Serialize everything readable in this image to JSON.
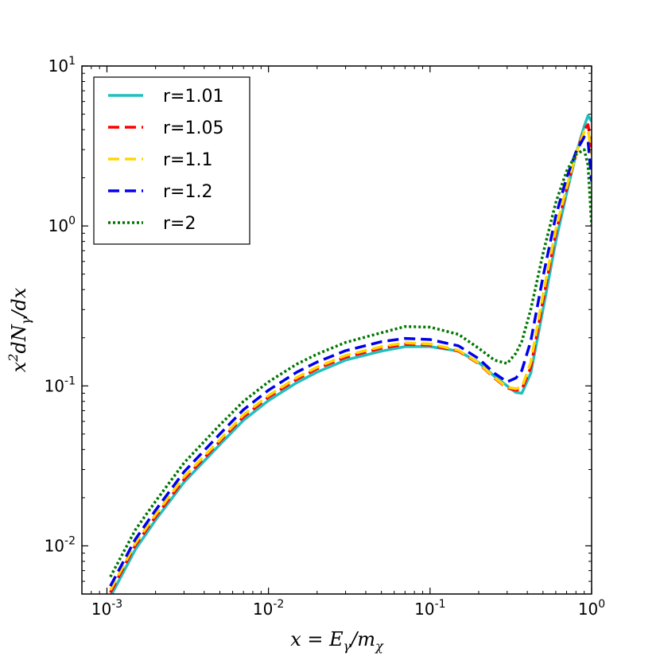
{
  "chart_data": {
    "type": "line",
    "title": "",
    "xlabel": "x = Eγ/mχ",
    "ylabel": "x²dNγ/dx",
    "xscale": "log",
    "yscale": "log",
    "xlim": [
      0.0007,
      1.0
    ],
    "ylim": [
      0.005,
      10
    ],
    "xticks": [
      {
        "value": 0.001,
        "base": "10",
        "exp": "-3"
      },
      {
        "value": 0.01,
        "base": "10",
        "exp": "-2"
      },
      {
        "value": 0.1,
        "base": "10",
        "exp": "-1"
      },
      {
        "value": 1,
        "base": "10",
        "exp": "0"
      }
    ],
    "yticks": [
      {
        "value": 0.01,
        "base": "10",
        "exp": "-2"
      },
      {
        "value": 0.1,
        "base": "10",
        "exp": "-1"
      },
      {
        "value": 1,
        "base": "10",
        "exp": "0"
      },
      {
        "value": 10,
        "base": "10",
        "exp": "1"
      }
    ],
    "legend_position": "top-left",
    "series": [
      {
        "name": "r=1.01",
        "color": "#22bfbf",
        "style": "solid",
        "x": [
          0.00105,
          0.0015,
          0.002,
          0.003,
          0.005,
          0.007,
          0.01,
          0.015,
          0.02,
          0.03,
          0.05,
          0.07,
          0.1,
          0.15,
          0.2,
          0.25,
          0.3,
          0.34,
          0.37,
          0.42,
          0.5,
          0.6,
          0.7,
          0.8,
          0.9,
          0.95,
          1.0
        ],
        "y": [
          0.0048,
          0.0095,
          0.0145,
          0.025,
          0.043,
          0.061,
          0.081,
          0.105,
          0.122,
          0.145,
          0.165,
          0.176,
          0.176,
          0.165,
          0.14,
          0.115,
          0.1,
          0.091,
          0.09,
          0.12,
          0.3,
          0.8,
          1.6,
          2.8,
          4.2,
          4.9,
          4.5
        ]
      },
      {
        "name": "r=1.05",
        "color": "#ff0000",
        "style": "dashed",
        "x": [
          0.00105,
          0.0015,
          0.002,
          0.003,
          0.005,
          0.007,
          0.01,
          0.015,
          0.02,
          0.03,
          0.05,
          0.07,
          0.1,
          0.15,
          0.2,
          0.25,
          0.3,
          0.34,
          0.37,
          0.42,
          0.5,
          0.6,
          0.7,
          0.8,
          0.9,
          0.95,
          1.0
        ],
        "y": [
          0.0051,
          0.0101,
          0.0152,
          0.026,
          0.045,
          0.064,
          0.085,
          0.11,
          0.128,
          0.151,
          0.172,
          0.182,
          0.18,
          0.165,
          0.138,
          0.112,
          0.097,
          0.094,
          0.095,
          0.13,
          0.34,
          0.9,
          1.7,
          2.8,
          4.0,
          4.3,
          3.1
        ]
      },
      {
        "name": "r=1.1",
        "color": "#ffd700",
        "style": "dashed",
        "x": [
          0.00105,
          0.0015,
          0.002,
          0.003,
          0.005,
          0.007,
          0.01,
          0.015,
          0.02,
          0.03,
          0.05,
          0.07,
          0.1,
          0.15,
          0.2,
          0.25,
          0.3,
          0.34,
          0.37,
          0.42,
          0.5,
          0.6,
          0.7,
          0.8,
          0.9,
          0.95,
          1.0
        ],
        "y": [
          0.0053,
          0.0104,
          0.0157,
          0.027,
          0.046,
          0.066,
          0.087,
          0.113,
          0.131,
          0.155,
          0.176,
          0.186,
          0.183,
          0.167,
          0.139,
          0.113,
          0.098,
          0.096,
          0.098,
          0.14,
          0.37,
          0.95,
          1.75,
          2.8,
          3.9,
          4.0,
          2.8
        ]
      },
      {
        "name": "r=1.2",
        "color": "#0000ee",
        "style": "dashed",
        "x": [
          0.00105,
          0.0015,
          0.002,
          0.003,
          0.005,
          0.007,
          0.01,
          0.015,
          0.02,
          0.03,
          0.05,
          0.07,
          0.1,
          0.15,
          0.2,
          0.25,
          0.3,
          0.34,
          0.37,
          0.42,
          0.5,
          0.6,
          0.7,
          0.8,
          0.9,
          0.95,
          1.0
        ],
        "y": [
          0.0056,
          0.011,
          0.0167,
          0.029,
          0.05,
          0.071,
          0.094,
          0.122,
          0.141,
          0.166,
          0.189,
          0.198,
          0.195,
          0.178,
          0.148,
          0.12,
          0.106,
          0.112,
          0.125,
          0.19,
          0.48,
          1.15,
          2.0,
          2.9,
          3.6,
          3.4,
          1.9
        ]
      },
      {
        "name": "r=2",
        "color": "#007700",
        "style": "dotted",
        "x": [
          0.00105,
          0.0015,
          0.002,
          0.003,
          0.005,
          0.007,
          0.01,
          0.015,
          0.02,
          0.03,
          0.05,
          0.07,
          0.1,
          0.15,
          0.2,
          0.25,
          0.3,
          0.34,
          0.37,
          0.42,
          0.5,
          0.6,
          0.7,
          0.8,
          0.9,
          0.95,
          1.0
        ],
        "y": [
          0.0064,
          0.0126,
          0.019,
          0.033,
          0.057,
          0.08,
          0.106,
          0.137,
          0.158,
          0.187,
          0.215,
          0.235,
          0.233,
          0.21,
          0.172,
          0.145,
          0.138,
          0.16,
          0.19,
          0.3,
          0.67,
          1.4,
          2.2,
          2.8,
          3.0,
          2.4,
          1.0
        ]
      }
    ]
  }
}
